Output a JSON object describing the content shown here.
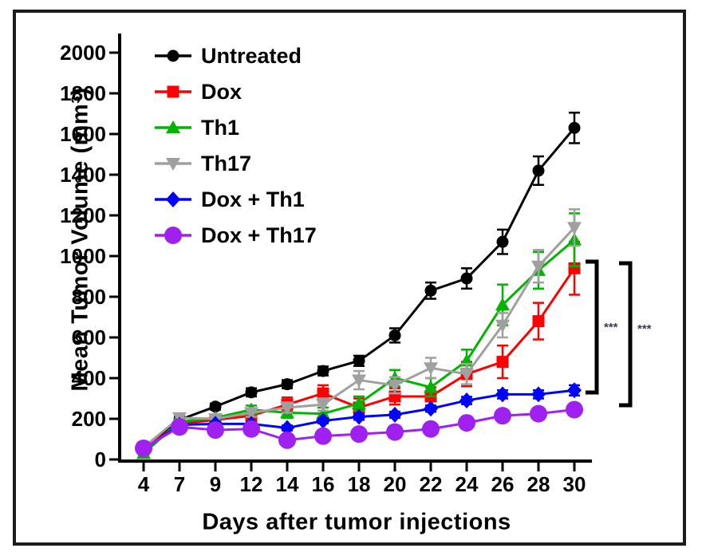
{
  "figure": {
    "y_axis_title": "Mean Tumor Volume (mm³)",
    "x_axis_title": "Days after tumor injections"
  },
  "chart_data": {
    "type": "line",
    "x": [
      4,
      7,
      9,
      12,
      14,
      16,
      18,
      20,
      22,
      24,
      26,
      28,
      30
    ],
    "xlabel": "Days after tumor injections",
    "ylabel": "Mean Tumor Volume (mm³)",
    "ylim": [
      0,
      2000
    ],
    "yticks": [
      0,
      200,
      400,
      600,
      800,
      1000,
      1200,
      1400,
      1600,
      1800,
      2000
    ],
    "grid": false,
    "legend_position": "top-left-inside",
    "series": [
      {
        "name": "Untreated",
        "color": "#000000",
        "marker": "circle",
        "values": [
          60,
          195,
          260,
          330,
          370,
          435,
          485,
          610,
          830,
          890,
          1070,
          1420,
          1630
        ],
        "errors": [
          12,
          15,
          15,
          20,
          20,
          22,
          25,
          35,
          40,
          50,
          60,
          70,
          75
        ]
      },
      {
        "name": "Dox",
        "color": "#FF0000",
        "marker": "square",
        "values": [
          55,
          175,
          195,
          215,
          270,
          325,
          255,
          310,
          310,
          420,
          480,
          680,
          940
        ],
        "errors": [
          10,
          15,
          15,
          20,
          35,
          40,
          45,
          40,
          45,
          60,
          80,
          90,
          130
        ]
      },
      {
        "name": "Th1",
        "color": "#00B400",
        "marker": "triangle-up",
        "values": [
          30,
          185,
          205,
          245,
          230,
          225,
          275,
          400,
          355,
          485,
          760,
          930,
          1080
        ],
        "errors": [
          10,
          15,
          15,
          20,
          25,
          30,
          35,
          40,
          45,
          55,
          100,
          90,
          130
        ]
      },
      {
        "name": "Th17",
        "color": "#A0A0A0",
        "marker": "triangle-down",
        "values": [
          60,
          205,
          200,
          230,
          255,
          270,
          390,
          365,
          450,
          420,
          660,
          950,
          1140
        ],
        "errors": [
          12,
          15,
          15,
          20,
          25,
          30,
          45,
          40,
          50,
          50,
          60,
          80,
          90
        ]
      },
      {
        "name": "Dox + Th1",
        "color": "#0000FF",
        "marker": "diamond",
        "values": [
          50,
          170,
          175,
          175,
          155,
          190,
          210,
          220,
          250,
          290,
          320,
          320,
          340
        ],
        "errors": [
          8,
          10,
          10,
          10,
          12,
          12,
          15,
          15,
          15,
          18,
          20,
          20,
          25
        ]
      },
      {
        "name": "Dox + Th17",
        "color": "#A020F0",
        "marker": "big-circle",
        "values": [
          55,
          160,
          145,
          150,
          95,
          115,
          125,
          135,
          150,
          180,
          215,
          225,
          245
        ],
        "errors": [
          8,
          10,
          10,
          10,
          12,
          12,
          12,
          12,
          15,
          15,
          18,
          20,
          25
        ]
      }
    ],
    "annotations": [
      {
        "type": "bracket",
        "label": "***",
        "compare": [
          "Dox",
          "Dox + Th1"
        ]
      },
      {
        "type": "bracket",
        "label": "***",
        "compare": [
          "Dox",
          "Dox + Th17"
        ]
      }
    ]
  }
}
